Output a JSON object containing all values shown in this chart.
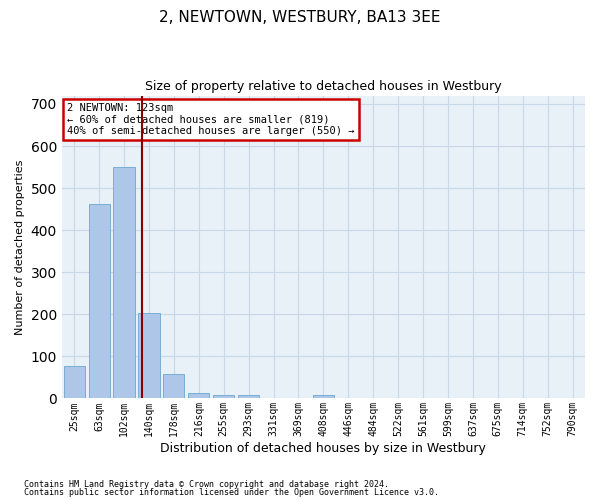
{
  "title": "2, NEWTOWN, WESTBURY, BA13 3EE",
  "subtitle": "Size of property relative to detached houses in Westbury",
  "xlabel": "Distribution of detached houses by size in Westbury",
  "ylabel": "Number of detached properties",
  "footnote1": "Contains HM Land Registry data © Crown copyright and database right 2024.",
  "footnote2": "Contains public sector information licensed under the Open Government Licence v3.0.",
  "bar_labels": [
    "25sqm",
    "63sqm",
    "102sqm",
    "140sqm",
    "178sqm",
    "216sqm",
    "255sqm",
    "293sqm",
    "331sqm",
    "369sqm",
    "408sqm",
    "446sqm",
    "484sqm",
    "522sqm",
    "561sqm",
    "599sqm",
    "637sqm",
    "675sqm",
    "714sqm",
    "752sqm",
    "790sqm"
  ],
  "bar_values": [
    78,
    462,
    550,
    203,
    57,
    14,
    9,
    9,
    0,
    0,
    8,
    0,
    0,
    0,
    0,
    0,
    0,
    0,
    0,
    0,
    0
  ],
  "bar_color": "#aec6e8",
  "bar_edgecolor": "#7aadd4",
  "grid_color": "#c8d8e8",
  "bg_color": "#e8f0f8",
  "vline_x": 2.72,
  "vline_color": "#8b0000",
  "annotation_line1": "2 NEWTOWN: 123sqm",
  "annotation_line2": "← 60% of detached houses are smaller (819)",
  "annotation_line3": "40% of semi-detached houses are larger (550) →",
  "annotation_box_color": "#cc0000",
  "ylim": [
    0,
    720
  ],
  "yticks": [
    0,
    100,
    200,
    300,
    400,
    500,
    600,
    700
  ],
  "title_fontsize": 11,
  "subtitle_fontsize": 9,
  "ylabel_fontsize": 8,
  "xlabel_fontsize": 9,
  "tick_fontsize": 7,
  "annot_fontsize": 7.5,
  "footnote_fontsize": 6
}
